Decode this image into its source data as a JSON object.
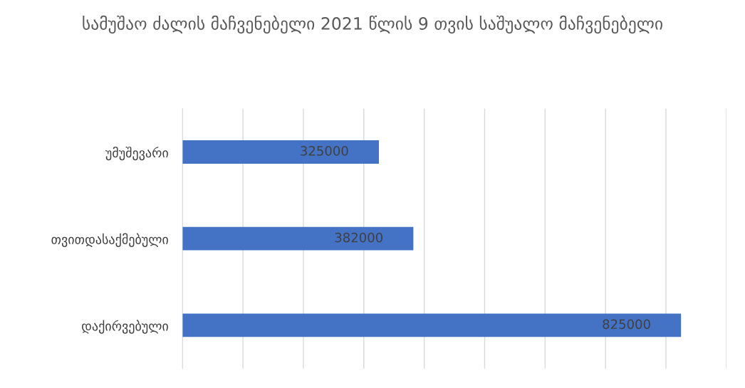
{
  "chart_data": {
    "type": "bar",
    "orientation": "horizontal",
    "title": "სამუშაო ძალის მაჩვენებელი 2021 წლის 9 თვის საშუალო მაჩვენებელი",
    "categories": [
      "უმუშევარი",
      "თვითდასაქმებული",
      "დაქირვებული"
    ],
    "values": [
      325000,
      382000,
      825000
    ],
    "color": "#4472c4",
    "data_labels": true,
    "xlim": [
      0,
      900000
    ],
    "xticks": [
      {
        "value": 0,
        "label": null
      },
      {
        "value": 100000,
        "label": null
      },
      {
        "value": 200000,
        "label": null
      },
      {
        "value": 300000,
        "label": null
      },
      {
        "value": 400000,
        "label": null
      },
      {
        "value": 500000,
        "label": null
      },
      {
        "value": 600000,
        "label": null
      },
      {
        "value": 700000,
        "label": null
      },
      {
        "value": 800000,
        "label": null
      },
      {
        "value": 900000,
        "label": null
      }
    ],
    "tick_labels": "y",
    "grid": "x",
    "legend": false
  }
}
